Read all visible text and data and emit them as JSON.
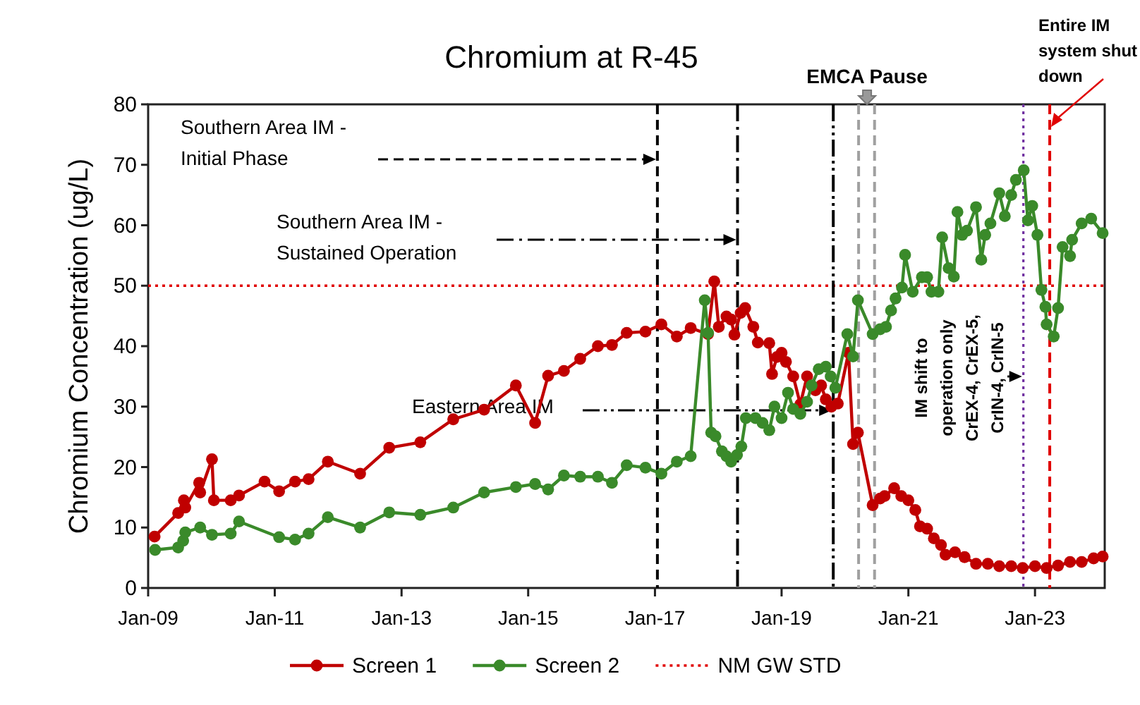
{
  "chart_data": {
    "type": "line",
    "title": "Chromium at R-45",
    "ylabel": "Chromium Concentration (ug/L)",
    "xlim": [
      "2009-01-01",
      "2024-02-07"
    ],
    "xticks": [
      {
        "value": "2009-01-01",
        "label": "Jan-09"
      },
      {
        "value": "2011-01-01",
        "label": "Jan-11"
      },
      {
        "value": "2013-01-01",
        "label": "Jan-13"
      },
      {
        "value": "2015-01-01",
        "label": "Jan-15"
      },
      {
        "value": "2017-01-01",
        "label": "Jan-17"
      },
      {
        "value": "2019-01-01",
        "label": "Jan-19"
      },
      {
        "value": "2021-01-01",
        "label": "Jan-21"
      },
      {
        "value": "2023-01-01",
        "label": "Jan-23"
      }
    ],
    "ylim": [
      0,
      80
    ],
    "yticks": [
      0,
      10,
      20,
      30,
      40,
      50,
      60,
      70,
      80
    ],
    "grid": false,
    "legend": "bottom",
    "marker": "circle",
    "line_style": "solid",
    "series": [
      {
        "name": "Screen 1",
        "color": "#c00000",
        "x": [
          "2009-02-07",
          "2009-06-23",
          "2009-07-26",
          "2009-08-03",
          "2009-10-22",
          "2009-10-28",
          "2010-01-04",
          "2010-01-15",
          "2010-04-22",
          "2010-06-09",
          "2010-11-03",
          "2011-01-26",
          "2011-04-28",
          "2011-07-15",
          "2011-11-03",
          "2012-05-07",
          "2012-10-22",
          "2013-04-19",
          "2013-10-26",
          "2014-04-22",
          "2014-10-22",
          "2015-02-10",
          "2015-04-26",
          "2015-07-26",
          "2015-10-28",
          "2016-02-07",
          "2016-04-28",
          "2016-07-22",
          "2016-11-07",
          "2017-02-07",
          "2017-05-07",
          "2017-07-26",
          "2017-11-03",
          "2017-12-09",
          "2018-01-04",
          "2018-02-17",
          "2018-03-16",
          "2018-04-04",
          "2018-05-10",
          "2018-06-05",
          "2018-07-22",
          "2018-08-17",
          "2018-10-22",
          "2018-11-07",
          "2018-12-05",
          "2019-01-01",
          "2019-01-26",
          "2019-03-09",
          "2019-04-19",
          "2019-05-28",
          "2019-07-15",
          "2019-08-17",
          "2019-09-13",
          "2019-10-15",
          "2019-11-21",
          "2020-01-22",
          "2020-02-17",
          "2020-03-16",
          "2020-06-09",
          "2020-07-22",
          "2020-08-17",
          "2020-10-11",
          "2020-11-21",
          "2021-01-01",
          "2021-02-10",
          "2021-03-09",
          "2021-04-19",
          "2021-05-28",
          "2021-07-08",
          "2021-08-03",
          "2021-09-27",
          "2021-11-21",
          "2022-01-26",
          "2022-04-04",
          "2022-06-09",
          "2022-08-17",
          "2022-10-22",
          "2023-01-01",
          "2023-03-09",
          "2023-05-14",
          "2023-07-22",
          "2023-09-27",
          "2023-12-05",
          "2024-01-26"
        ],
        "values": [
          8.5,
          12.4,
          14.5,
          13.3,
          17.4,
          15.8,
          21.3,
          14.5,
          14.5,
          15.3,
          17.6,
          16.0,
          17.6,
          18.0,
          20.9,
          18.9,
          23.2,
          24.1,
          27.9,
          29.5,
          33.5,
          27.3,
          35.1,
          35.9,
          37.9,
          40.0,
          40.2,
          42.2,
          42.4,
          43.6,
          41.6,
          43.0,
          42.0,
          50.7,
          43.2,
          44.9,
          44.4,
          41.9,
          45.5,
          46.3,
          43.2,
          40.6,
          40.5,
          35.4,
          38.2,
          38.9,
          37.4,
          35.0,
          30.4,
          35.0,
          32.7,
          33.5,
          31.2,
          30.0,
          30.5,
          38.9,
          23.8,
          25.7,
          13.7,
          14.8,
          15.2,
          16.5,
          15.2,
          14.5,
          12.9,
          10.2,
          9.8,
          8.2,
          7.1,
          5.5,
          5.9,
          5.1,
          4.0,
          4.0,
          3.6,
          3.6,
          3.3,
          3.6,
          3.3,
          3.7,
          4.3,
          4.3,
          4.9,
          5.2
        ]
      },
      {
        "name": "Screen 2",
        "color": "#3a8a2a",
        "x": [
          "2009-02-10",
          "2009-06-23",
          "2009-07-22",
          "2009-08-03",
          "2009-10-28",
          "2010-01-04",
          "2010-04-22",
          "2010-06-09",
          "2011-01-26",
          "2011-04-28",
          "2011-07-15",
          "2011-11-03",
          "2012-05-07",
          "2012-10-22",
          "2013-04-19",
          "2013-10-26",
          "2014-04-22",
          "2014-10-22",
          "2015-02-10",
          "2015-04-26",
          "2015-07-26",
          "2015-10-28",
          "2016-02-07",
          "2016-04-28",
          "2016-07-22",
          "2016-11-07",
          "2017-02-07",
          "2017-05-07",
          "2017-07-26",
          "2017-10-15",
          "2017-11-03",
          "2017-11-21",
          "2017-12-16",
          "2018-01-22",
          "2018-02-17",
          "2018-03-16",
          "2018-04-19",
          "2018-05-14",
          "2018-06-09",
          "2018-08-03",
          "2018-09-13",
          "2018-10-22",
          "2018-11-21",
          "2019-01-01",
          "2019-02-07",
          "2019-03-09",
          "2019-04-19",
          "2019-05-28",
          "2019-06-23",
          "2019-08-03",
          "2019-09-13",
          "2019-10-11",
          "2019-11-07",
          "2020-01-15",
          "2020-02-17",
          "2020-03-16",
          "2020-06-09",
          "2020-07-22",
          "2020-08-25",
          "2020-09-23",
          "2020-10-19",
          "2020-11-25",
          "2020-12-13",
          "2021-01-26",
          "2021-03-20",
          "2021-04-19",
          "2021-05-14",
          "2021-06-23",
          "2021-07-15",
          "2021-08-21",
          "2021-09-20",
          "2021-10-11",
          "2021-11-07",
          "2021-12-05",
          "2022-01-26",
          "2022-02-25",
          "2022-03-20",
          "2022-04-19",
          "2022-06-09",
          "2022-07-11",
          "2022-08-17",
          "2022-09-13",
          "2022-10-28",
          "2022-11-21",
          "2022-12-16",
          "2023-01-15",
          "2023-02-07",
          "2023-03-02",
          "2023-03-09",
          "2023-04-19",
          "2023-05-14",
          "2023-06-09",
          "2023-07-22",
          "2023-08-03",
          "2023-09-27",
          "2023-11-21",
          "2024-01-26"
        ],
        "values": [
          6.3,
          6.7,
          7.8,
          9.2,
          10.0,
          8.8,
          9.0,
          11.0,
          8.4,
          8.0,
          9.0,
          11.7,
          10.0,
          12.5,
          12.1,
          13.3,
          15.8,
          16.7,
          17.2,
          16.3,
          18.6,
          18.4,
          18.4,
          17.4,
          20.3,
          19.9,
          18.9,
          20.9,
          21.8,
          47.6,
          42.2,
          25.7,
          25.1,
          22.6,
          21.8,
          20.9,
          22.0,
          23.4,
          28.1,
          28.1,
          27.3,
          26.1,
          30.0,
          28.1,
          32.3,
          29.6,
          28.8,
          30.8,
          33.5,
          36.2,
          36.6,
          35.0,
          33.1,
          42.0,
          38.3,
          47.6,
          42.0,
          42.8,
          43.2,
          45.9,
          47.9,
          49.7,
          55.1,
          49.0,
          51.4,
          51.4,
          49.0,
          49.0,
          58.0,
          52.9,
          51.5,
          62.2,
          58.4,
          59.1,
          63.0,
          54.3,
          58.4,
          60.3,
          65.3,
          61.5,
          65.0,
          67.5,
          69.1,
          60.8,
          63.2,
          58.4,
          49.3,
          46.5,
          43.6,
          41.6,
          46.3,
          56.4,
          54.9,
          57.6,
          60.3,
          61.1,
          58.7
        ]
      }
    ],
    "ref_lines": [
      {
        "axis": "y",
        "value": 50,
        "label": "NM GW STD",
        "color": "#e00000",
        "line_style": "dotted"
      },
      {
        "axis": "x",
        "value": "2017-01-15",
        "color": "#000000",
        "line_style": "dashed"
      },
      {
        "axis": "x",
        "value": "2018-04-22",
        "color": "#000000",
        "line_style": "dashdot"
      },
      {
        "axis": "x",
        "value": "2019-10-26",
        "color": "#000000",
        "line_style": "dashdotdot"
      },
      {
        "axis": "x",
        "value": "2020-03-20",
        "label": "EMCA Pause",
        "color": "#a0a0a0",
        "line_style": "dashed"
      },
      {
        "axis": "x",
        "value": "2020-06-20",
        "color": "#a0a0a0",
        "line_style": "dashed"
      },
      {
        "axis": "x",
        "value": "2022-10-26",
        "label": "IM shift to operation only CrEX-4, CrEX-5, CrIN-4, CrIN-5",
        "color": "#7030a0",
        "line_style": "dotted"
      },
      {
        "axis": "x",
        "value": "2023-03-27",
        "label": "Entire IM system shut down",
        "color": "#e00000",
        "line_style": "dashed"
      }
    ],
    "annotations": [
      "Southern Area IM - Initial Phase",
      "Southern Area IM - Sustained Operation",
      "Eastern Area IM"
    ]
  }
}
